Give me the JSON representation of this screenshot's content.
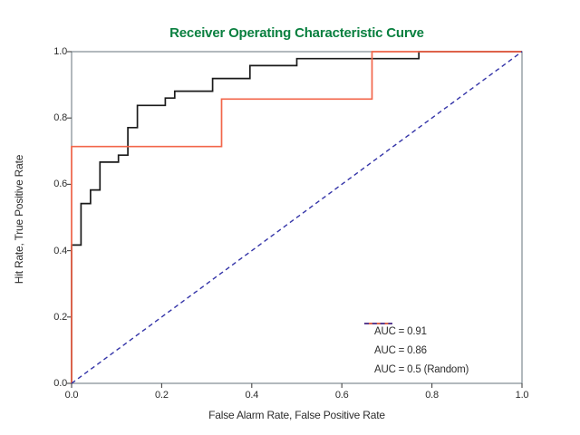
{
  "title": {
    "text": "Receiver Operating Characteristic Curve",
    "color": "#0a8040"
  },
  "axes": {
    "x": {
      "label": "False Alarm Rate, False Positive Rate",
      "tick_labels": [
        "0.0",
        "0.2",
        "0.4",
        "0.6",
        "0.8",
        "1.0"
      ],
      "tick_values": [
        0.0,
        0.2,
        0.4,
        0.6,
        0.8,
        1.0
      ]
    },
    "y": {
      "label": "Hit Rate, True Positive Rate",
      "tick_labels": [
        "0.0",
        "0.2",
        "0.4",
        "0.6",
        "0.8",
        "1.0"
      ],
      "tick_values": [
        0.0,
        0.2,
        0.4,
        0.6,
        0.8,
        1.0
      ]
    }
  },
  "colors": {
    "title_green": "#0a8040",
    "series_black": "#1a1a1a",
    "series_orange": "#f2664a",
    "series_blue": "#3434a8",
    "spine_gray": "#7e8a91",
    "tick_mark": "#444444",
    "text": "#2d2d2d"
  },
  "chart_data": {
    "type": "line",
    "title": "Receiver Operating Characteristic Curve",
    "xlabel": "False Alarm Rate, False Positive Rate",
    "ylabel": "Hit Rate, True Positive Rate",
    "xlim": [
      0,
      1
    ],
    "ylim": [
      0,
      1
    ],
    "grid": false,
    "legend_position": "lower right",
    "series": [
      {
        "name": "AUC = 0.91",
        "color": "#1a1a1a",
        "style": "solid",
        "shape": "step",
        "points": [
          [
            0,
            0
          ],
          [
            0,
            0.417
          ],
          [
            0.021,
            0.417
          ],
          [
            0.021,
            0.542
          ],
          [
            0.042,
            0.542
          ],
          [
            0.042,
            0.583
          ],
          [
            0.063,
            0.583
          ],
          [
            0.063,
            0.667
          ],
          [
            0.104,
            0.667
          ],
          [
            0.104,
            0.688
          ],
          [
            0.125,
            0.688
          ],
          [
            0.125,
            0.771
          ],
          [
            0.146,
            0.771
          ],
          [
            0.146,
            0.838
          ],
          [
            0.208,
            0.838
          ],
          [
            0.208,
            0.86
          ],
          [
            0.229,
            0.86
          ],
          [
            0.229,
            0.881
          ],
          [
            0.313,
            0.881
          ],
          [
            0.313,
            0.919
          ],
          [
            0.396,
            0.919
          ],
          [
            0.396,
            0.958
          ],
          [
            0.5,
            0.958
          ],
          [
            0.5,
            0.979
          ],
          [
            0.771,
            0.979
          ],
          [
            0.771,
            1
          ],
          [
            1,
            1
          ]
        ]
      },
      {
        "name": "AUC = 0.86",
        "color": "#f2664a",
        "style": "solid",
        "shape": "step",
        "points": [
          [
            0,
            0
          ],
          [
            0,
            0.714
          ],
          [
            0.333,
            0.714
          ],
          [
            0.333,
            0.857
          ],
          [
            0.667,
            0.857
          ],
          [
            0.667,
            1
          ],
          [
            1,
            1
          ]
        ]
      },
      {
        "name": "AUC = 0.5 (Random)",
        "color": "#3434a8",
        "style": "dashed",
        "shape": "line",
        "points": [
          [
            0,
            0
          ],
          [
            1,
            1
          ]
        ]
      }
    ]
  },
  "legend": {
    "entries": [
      {
        "label": "AUC = 0.91",
        "color": "#1a1a1a",
        "dashed": false
      },
      {
        "label": "AUC = 0.86",
        "color": "#f2664a",
        "dashed": false
      },
      {
        "label": "AUC = 0.5 (Random)",
        "color": "#3434a8",
        "dashed": true
      }
    ]
  }
}
